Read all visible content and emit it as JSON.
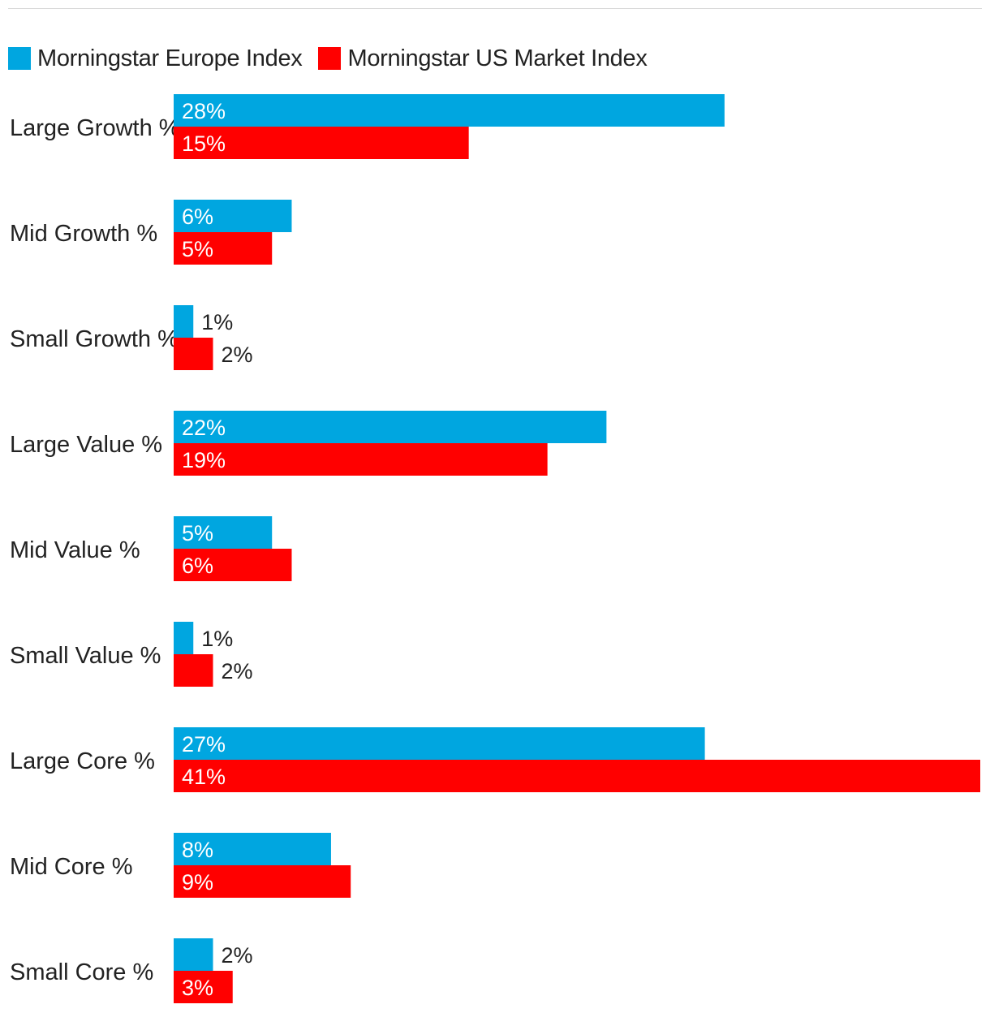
{
  "chart_data": {
    "type": "bar",
    "orientation": "horizontal",
    "categories": [
      "Large Growth %",
      "Mid Growth %",
      "Small Growth %",
      "Large Value %",
      "Mid Value %",
      "Small Value %",
      "Large Core %",
      "Mid Core %",
      "Small Core %"
    ],
    "series": [
      {
        "name": "Morningstar Europe Index",
        "color": "#00a6e0",
        "values": [
          28,
          6,
          1,
          22,
          5,
          1,
          27,
          8,
          2
        ]
      },
      {
        "name": "Morningstar US Market Index",
        "color": "#ff0000",
        "values": [
          15,
          5,
          2,
          19,
          6,
          2,
          41,
          9,
          3
        ]
      }
    ],
    "value_labels": [
      [
        "28%",
        "6%",
        "1%",
        "22%",
        "5%",
        "1%",
        "27%",
        "8%",
        "2%"
      ],
      [
        "15%",
        "5%",
        "2%",
        "19%",
        "6%",
        "2%",
        "41%",
        "9%",
        "3%"
      ]
    ],
    "xlim": [
      0,
      41
    ],
    "title": "",
    "xlabel": "",
    "ylabel": "",
    "grid": false,
    "legend_position": "top-left"
  }
}
